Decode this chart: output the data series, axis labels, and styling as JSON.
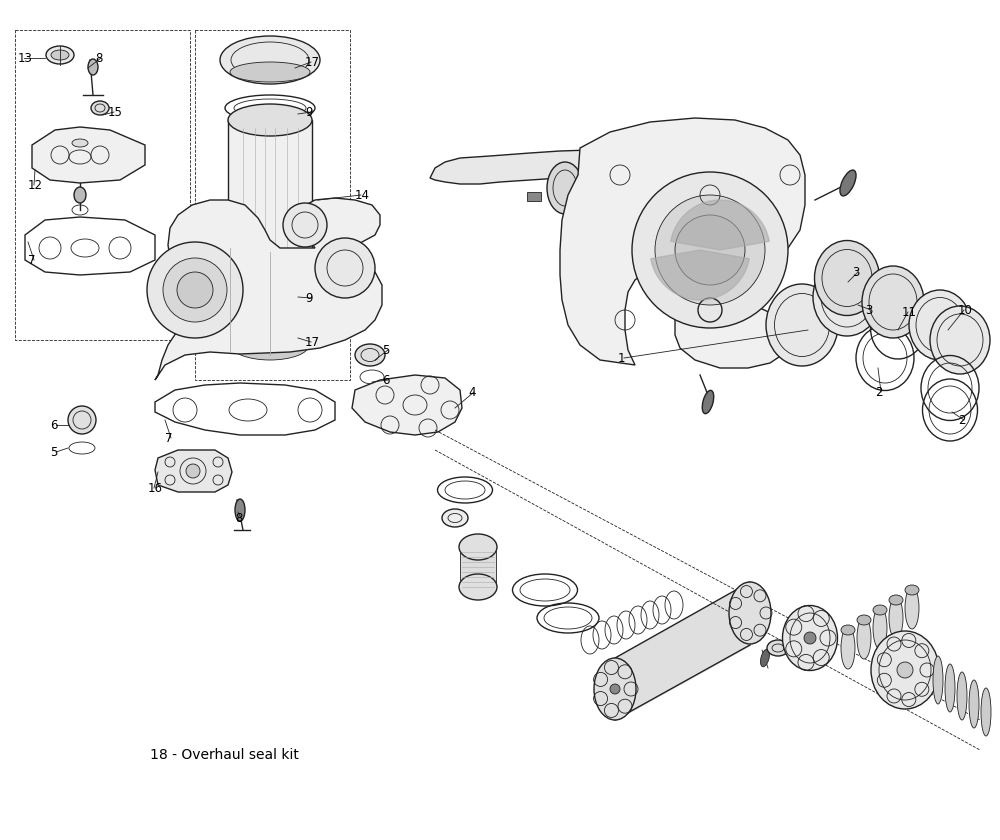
{
  "background_color": "#ffffff",
  "line_color": "#222222",
  "label_color": "#000000",
  "fig_width": 10.0,
  "fig_height": 8.4,
  "note_text": "18 - Overhaul seal kit",
  "note_fontsize": 10,
  "annotation_fontsize": 8.5,
  "lw_main": 1.0,
  "lw_thin": 0.6
}
